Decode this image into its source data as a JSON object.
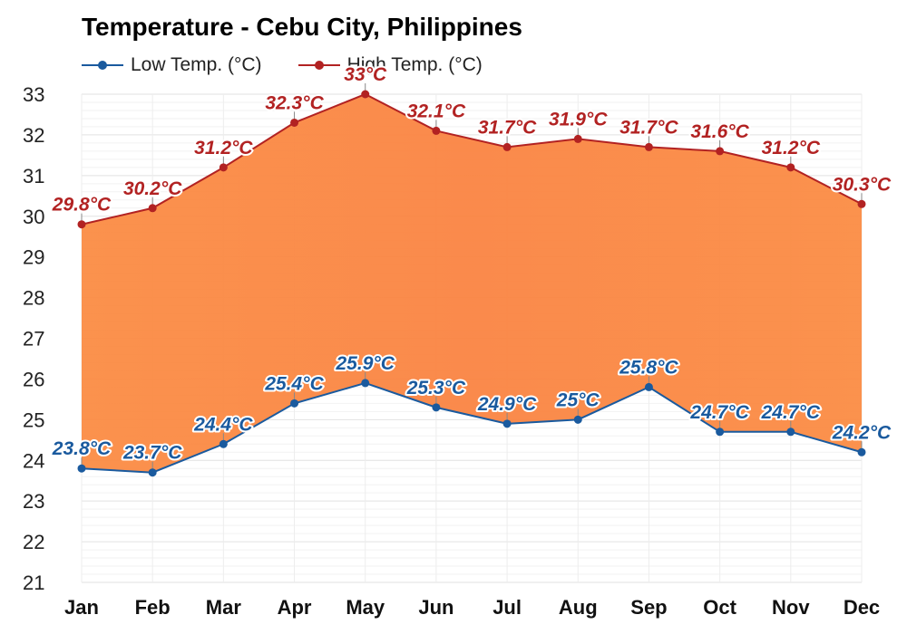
{
  "chart_data": {
    "type": "line",
    "title": "Temperature - Cebu City, Philippines",
    "categories": [
      "Jan",
      "Feb",
      "Mar",
      "Apr",
      "May",
      "Jun",
      "Jul",
      "Aug",
      "Sep",
      "Oct",
      "Nov",
      "Dec"
    ],
    "series": [
      {
        "name": "Low Temp. (°C)",
        "color": "#1a5a9e",
        "values": [
          23.8,
          23.7,
          24.4,
          25.4,
          25.9,
          25.3,
          24.9,
          25.0,
          25.8,
          24.7,
          24.7,
          24.2
        ],
        "labels": [
          "23.8°C",
          "23.7°C",
          "24.4°C",
          "25.4°C",
          "25.9°C",
          "25.3°C",
          "24.9°C",
          "25°C",
          "25.8°C",
          "24.7°C",
          "24.7°C",
          "24.2°C"
        ]
      },
      {
        "name": "High Temp. (°C)",
        "color": "#b22222",
        "values": [
          29.8,
          30.2,
          31.2,
          32.3,
          33.0,
          32.1,
          31.7,
          31.9,
          31.7,
          31.6,
          31.2,
          30.3
        ],
        "labels": [
          "29.8°C",
          "30.2°C",
          "31.2°C",
          "32.3°C",
          "33°C",
          "32.1°C",
          "31.7°C",
          "31.9°C",
          "31.7°C",
          "31.6°C",
          "31.2°C",
          "30.3°C"
        ]
      }
    ],
    "yticks": [
      "21",
      "22",
      "23",
      "24",
      "25",
      "26",
      "27",
      "28",
      "29",
      "30",
      "31",
      "32",
      "33"
    ],
    "ylim": [
      21,
      33
    ],
    "xlabel": "",
    "ylabel": "",
    "grid": true,
    "legend_position": "top-left",
    "fill_between_color": "#fb8c44"
  }
}
